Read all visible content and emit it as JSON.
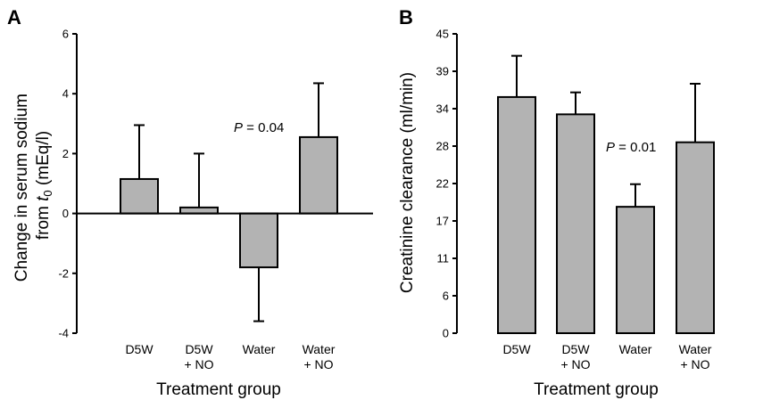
{
  "colors": {
    "bar_fill": "#b3b3b3",
    "stroke": "#000000",
    "background": "#ffffff"
  },
  "chart_data": [
    {
      "panel": "A",
      "type": "bar",
      "categories": [
        [
          "D5W"
        ],
        [
          "D5W",
          "+ NO"
        ],
        [
          "Water"
        ],
        [
          "Water",
          "+ NO"
        ]
      ],
      "values": [
        1.15,
        0.2,
        -1.8,
        2.55
      ],
      "errors": [
        1.8,
        1.8,
        1.8,
        1.8
      ],
      "error_direction": "away_from_zero",
      "xlabel": "Treatment group",
      "ylabel_prefix": "Change in serum sodium",
      "ylabel_line2_prefix": "from ",
      "ylabel_italic": "t",
      "ylabel_subscript": "0",
      "ylabel_suffix": " (mEq/l)",
      "ylim": [
        -4,
        6
      ],
      "yticks": [
        -4,
        -2,
        0,
        2,
        4,
        6
      ],
      "ytick_labels": [
        "-4",
        "-2",
        "0",
        "2",
        "4",
        "6"
      ],
      "zero_line": true,
      "annotation": {
        "italic": "P",
        "text": " = 0.04"
      }
    },
    {
      "panel": "B",
      "type": "bar",
      "categories": [
        [
          "D5W"
        ],
        [
          "D5W",
          "+ NO"
        ],
        [
          "Water"
        ],
        [
          "Water",
          "+ NO"
        ]
      ],
      "values": [
        35.5,
        32.9,
        19.0,
        28.7
      ],
      "errors": [
        6.2,
        3.3,
        3.4,
        8.8
      ],
      "error_direction": "up",
      "xlabel": "Treatment group",
      "ylabel": "Creatinine clearance (ml/min)",
      "ylim": [
        0,
        45
      ],
      "yticks": [
        0,
        5.625,
        11.25,
        16.875,
        22.5,
        28.125,
        33.75,
        39.375,
        45
      ],
      "ytick_labels": [
        "0",
        "6",
        "11",
        "17",
        "22",
        "28",
        "34",
        "39",
        "45"
      ],
      "zero_line": false,
      "annotation": {
        "italic": "P",
        "text": " = 0.01"
      }
    }
  ]
}
